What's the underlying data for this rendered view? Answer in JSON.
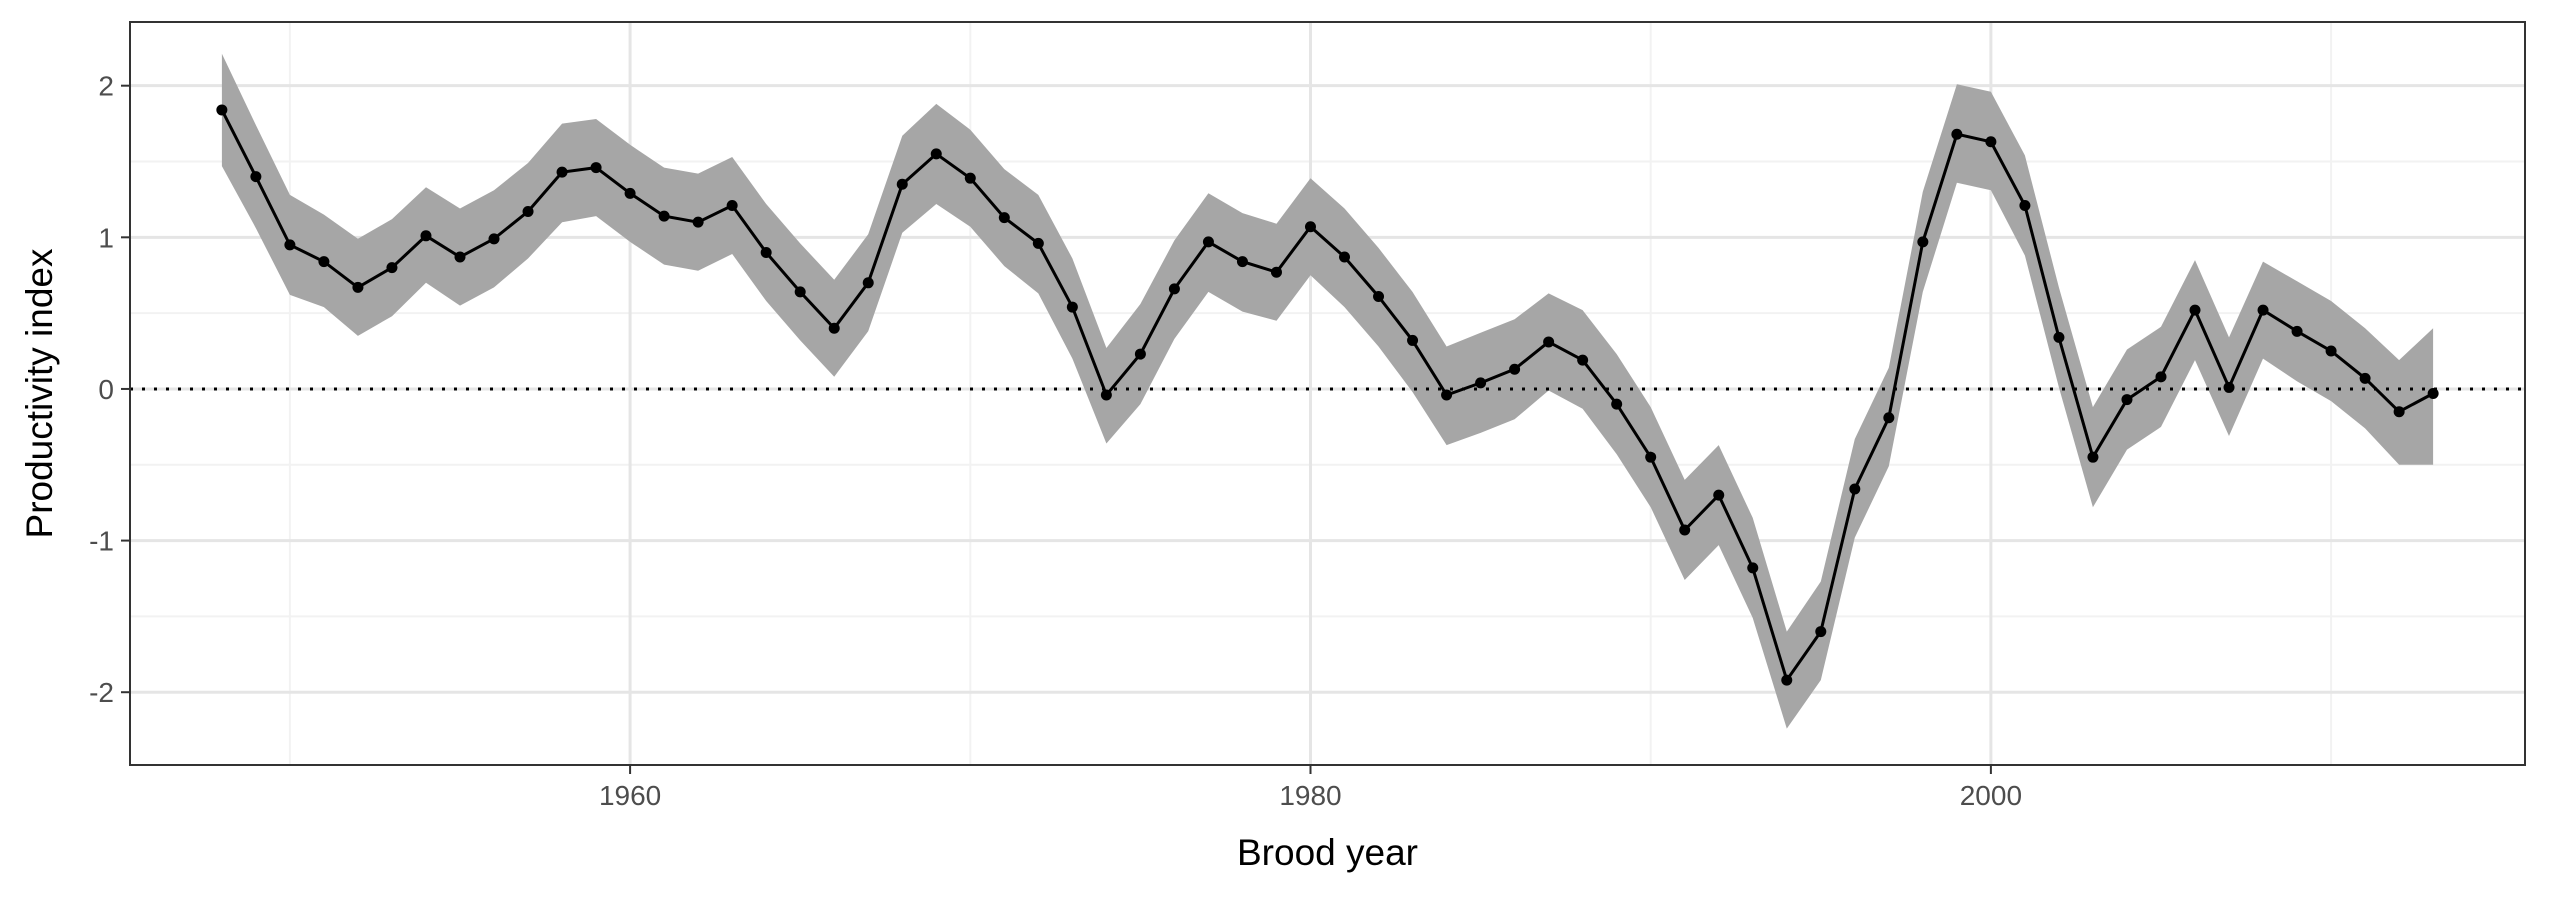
{
  "chart_data": {
    "type": "line",
    "title": "",
    "xlabel": "Brood year",
    "ylabel": "Productivity index",
    "xlim": [
      1945.3,
      2015.7
    ],
    "ylim": [
      -2.48,
      2.42
    ],
    "x_ticks": [
      1960,
      1980,
      2000
    ],
    "x_tick_labels": [
      "1960",
      "1980",
      "2000"
    ],
    "y_ticks": [
      -2,
      -1,
      0,
      1,
      2
    ],
    "y_tick_labels": [
      "-2",
      "-1",
      "0",
      "1",
      "2"
    ],
    "reference_line": 0,
    "grid": true,
    "legend": "none",
    "colors": {
      "line": "#000000",
      "ribbon": "#a6a6a6",
      "grid_major": "#e5e5e5",
      "grid_minor": "#f2f2f2",
      "panel_border": "#333333"
    },
    "series": [
      {
        "x": [
          1948,
          1949,
          1950,
          1951,
          1952,
          1953,
          1954,
          1955,
          1956,
          1957,
          1958,
          1959,
          1960,
          1961,
          1962,
          1963,
          1964,
          1965,
          1966,
          1967,
          1968,
          1969,
          1970,
          1971,
          1972,
          1973,
          1974,
          1975,
          1976,
          1977,
          1978,
          1979,
          1980,
          1981,
          1982,
          1983,
          1984,
          1985,
          1986,
          1987,
          1988,
          1989,
          1990,
          1991,
          1992,
          1993,
          1994,
          1995,
          1996,
          1997,
          1998,
          1999,
          2000,
          2001,
          2002,
          2003,
          2004,
          2005,
          2006,
          2007,
          2008,
          2009,
          2010,
          2011,
          2012,
          2013
        ],
        "y": [
          1.84,
          1.4,
          0.95,
          0.84,
          0.67,
          0.8,
          1.01,
          0.87,
          0.99,
          1.17,
          1.43,
          1.46,
          1.29,
          1.14,
          1.1,
          1.21,
          0.9,
          0.64,
          0.4,
          0.7,
          1.35,
          1.55,
          1.39,
          1.13,
          0.96,
          0.54,
          -0.04,
          0.23,
          0.66,
          0.97,
          0.84,
          0.77,
          1.07,
          0.87,
          0.61,
          0.32,
          -0.04,
          0.04,
          0.13,
          0.31,
          0.19,
          -0.1,
          -0.45,
          -0.93,
          -0.7,
          -1.18,
          -1.92,
          -1.6,
          -0.66,
          -0.19,
          0.97,
          1.68,
          1.63,
          1.21,
          0.34,
          -0.45,
          -0.07,
          0.08,
          0.52,
          0.01,
          0.52,
          0.38,
          0.25,
          0.07,
          -0.15,
          -0.03
        ],
        "lower": [
          1.47,
          1.06,
          0.62,
          0.54,
          0.35,
          0.48,
          0.7,
          0.55,
          0.67,
          0.86,
          1.1,
          1.14,
          0.97,
          0.82,
          0.78,
          0.89,
          0.58,
          0.32,
          0.08,
          0.38,
          1.03,
          1.22,
          1.07,
          0.81,
          0.63,
          0.2,
          -0.36,
          -0.1,
          0.33,
          0.64,
          0.51,
          0.45,
          0.75,
          0.54,
          0.28,
          -0.02,
          -0.37,
          -0.29,
          -0.2,
          -0.01,
          -0.13,
          -0.43,
          -0.78,
          -1.26,
          -1.03,
          -1.51,
          -2.24,
          -1.92,
          -0.98,
          -0.51,
          0.64,
          1.36,
          1.31,
          0.88,
          0.01,
          -0.78,
          -0.4,
          -0.25,
          0.19,
          -0.31,
          0.2,
          0.05,
          -0.08,
          -0.26,
          -0.5,
          -0.5
        ],
        "upper": [
          2.21,
          1.74,
          1.28,
          1.15,
          0.99,
          1.12,
          1.33,
          1.19,
          1.31,
          1.49,
          1.75,
          1.78,
          1.61,
          1.46,
          1.42,
          1.53,
          1.22,
          0.96,
          0.72,
          1.02,
          1.67,
          1.88,
          1.71,
          1.45,
          1.28,
          0.86,
          0.27,
          0.56,
          0.98,
          1.29,
          1.16,
          1.09,
          1.39,
          1.19,
          0.93,
          0.64,
          0.28,
          0.37,
          0.46,
          0.63,
          0.52,
          0.23,
          -0.12,
          -0.6,
          -0.37,
          -0.85,
          -1.6,
          -1.27,
          -0.33,
          0.14,
          1.3,
          2.01,
          1.96,
          1.54,
          0.67,
          -0.12,
          0.26,
          0.41,
          0.85,
          0.34,
          0.84,
          0.71,
          0.58,
          0.4,
          0.19,
          0.4
        ]
      }
    ]
  }
}
